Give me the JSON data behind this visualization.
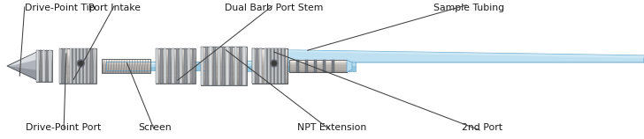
{
  "background_color": "#ffffff",
  "labels": {
    "drive_point_tip": "Drive-Point Tip",
    "port_intake": "Port Intake",
    "dual_barb_port_stem": "Dual Barb Port Stem",
    "sample_tubing": "Sample Tubing",
    "drive_point_port": "Drive-Point Port",
    "screen": "Screen",
    "npt_extension": "NPT Extension",
    "second_port": "2nd Port"
  },
  "colors": {
    "metal_base": "#c0c4cc",
    "metal_light": "#e8eaec",
    "metal_mid": "#b0b4bc",
    "metal_dark": "#787c84",
    "metal_edge": "#505458",
    "metal_vlight": "#f0f2f4",
    "metal_shadow": "#686c74",
    "metal_thread_hi": "#d8dadc",
    "metal_thread_lo": "#909498",
    "blue_tube": "#94c8e0",
    "blue_tube_light": "#b8ddf0",
    "blue_tube_vlight": "#d4eef8",
    "blue_tube_dark": "#60a0c8",
    "text_color": "#1a1a1a",
    "line_color": "#404040"
  },
  "figsize": [
    7.28,
    1.58
  ],
  "dpi": 100
}
